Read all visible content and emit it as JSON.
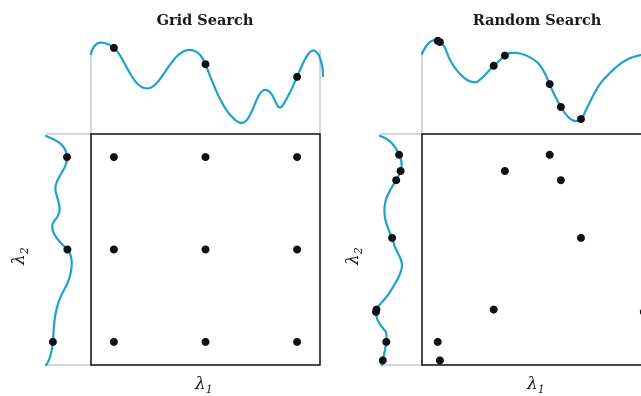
{
  "figure": {
    "colors": {
      "curve": "#1da2c9",
      "points": "#111111",
      "frame": "#1a1a1a",
      "guide": "#c8c8c8"
    },
    "panels": [
      {
        "id": "grid",
        "title": "Grid Search",
        "x_axis_label": "λ",
        "x_axis_subscript": "1",
        "y_axis_label": "λ",
        "y_axis_subscript": "2",
        "samples": [
          {
            "l1": 0.1,
            "l2": 0.9
          },
          {
            "l1": 0.5,
            "l2": 0.9
          },
          {
            "l1": 0.9,
            "l2": 0.9
          },
          {
            "l1": 0.1,
            "l2": 0.5
          },
          {
            "l1": 0.5,
            "l2": 0.5
          },
          {
            "l1": 0.9,
            "l2": 0.5
          },
          {
            "l1": 0.1,
            "l2": 0.1
          },
          {
            "l1": 0.5,
            "l2": 0.1
          },
          {
            "l1": 0.9,
            "l2": 0.1
          }
        ]
      },
      {
        "id": "random",
        "title": "Random Search",
        "x_axis_label": "λ",
        "x_axis_subscript": "1",
        "y_axis_label": "λ",
        "y_axis_subscript": "2",
        "samples": [
          {
            "l1": 0.07,
            "l2": 0.1
          },
          {
            "l1": 0.32,
            "l2": 0.24
          },
          {
            "l1": 0.37,
            "l2": 0.84
          },
          {
            "l1": 0.57,
            "l2": 0.91
          },
          {
            "l1": 0.62,
            "l2": 0.8
          },
          {
            "l1": 0.71,
            "l2": 0.55
          },
          {
            "l1": 0.08,
            "l2": 0.02
          },
          {
            "l1": 0.99,
            "l2": 0.23
          }
        ]
      }
    ]
  }
}
